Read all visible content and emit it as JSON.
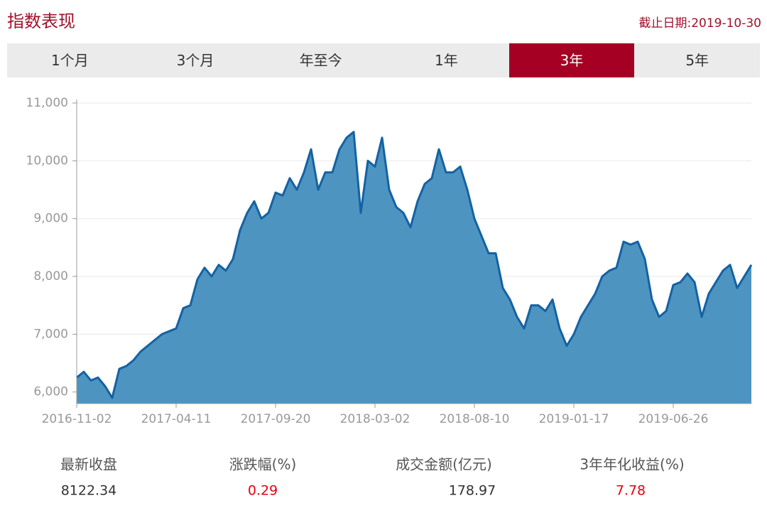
{
  "header": {
    "title": "指数表现",
    "date": "截止日期:2019-10-30"
  },
  "tabs": {
    "items": [
      "1个月",
      "3个月",
      "年至今",
      "1年",
      "3年",
      "5年"
    ],
    "active": 4,
    "active_color": "#a50024"
  },
  "chart_data": {
    "type": "area",
    "categories": [
      "2016-11-02",
      null,
      null,
      null,
      null,
      null,
      null,
      null,
      null,
      null,
      null,
      null,
      null,
      null,
      "2017-04-11",
      null,
      null,
      null,
      null,
      null,
      null,
      null,
      null,
      null,
      null,
      null,
      null,
      null,
      "2017-09-20",
      null,
      null,
      null,
      null,
      null,
      null,
      null,
      null,
      null,
      null,
      null,
      null,
      null,
      "2018-03-02",
      null,
      null,
      null,
      null,
      null,
      null,
      null,
      null,
      null,
      null,
      null,
      null,
      null,
      "2018-08-10",
      null,
      null,
      null,
      null,
      null,
      null,
      null,
      null,
      null,
      null,
      null,
      null,
      null,
      "2019-01-17",
      null,
      null,
      null,
      null,
      null,
      null,
      null,
      null,
      null,
      null,
      null,
      null,
      null,
      "2019-06-26",
      null,
      null,
      null,
      null,
      null,
      null,
      null,
      null,
      null,
      null,
      null
    ],
    "values": [
      6250,
      6350,
      6200,
      6250,
      6100,
      5900,
      6400,
      6450,
      6550,
      6700,
      6800,
      6900,
      7000,
      7050,
      7100,
      7450,
      7500,
      7950,
      8150,
      8000,
      8200,
      8100,
      8300,
      8800,
      9100,
      9300,
      9000,
      9100,
      9450,
      9400,
      9700,
      9500,
      9800,
      10200,
      9500,
      9800,
      9800,
      10200,
      10400,
      10500,
      9100,
      10000,
      9900,
      10400,
      9500,
      9200,
      9100,
      8850,
      9300,
      9600,
      9700,
      10200,
      9800,
      9800,
      9900,
      9500,
      9000,
      8700,
      8400,
      8400,
      7800,
      7600,
      7300,
      7100,
      7500,
      7500,
      7400,
      7600,
      7100,
      6800,
      7000,
      7300,
      7500,
      7700,
      8000,
      8100,
      8150,
      8600,
      8550,
      8600,
      8300,
      7600,
      7300,
      7400,
      7850,
      7900,
      8050,
      7900,
      7300,
      7700,
      7900,
      8100,
      8200,
      7800,
      8000,
      8200
    ],
    "color": "#4d94c1",
    "line_color": "#1462a3",
    "ylim": [
      5800,
      11000
    ],
    "yticks": [
      {
        "value": 6000,
        "label": "6,000"
      },
      {
        "value": 7000,
        "label": "7,000"
      },
      {
        "value": 8000,
        "label": "8,000"
      },
      {
        "value": 9000,
        "label": "9,000"
      },
      {
        "value": 10000,
        "label": "10,000"
      },
      {
        "value": 11000,
        "label": "11,000"
      }
    ],
    "grid": true
  },
  "stats": [
    {
      "label": "最新收盘",
      "value": "8122.34",
      "color": "#333333"
    },
    {
      "label": "涨跌幅(%)",
      "value": "0.29",
      "color": "#e60012"
    },
    {
      "label": "成交金额(亿元)",
      "value": "178.97",
      "color": "#333333"
    },
    {
      "label": "3年年化收益(%)",
      "value": "7.78",
      "color": "#e60012"
    }
  ]
}
